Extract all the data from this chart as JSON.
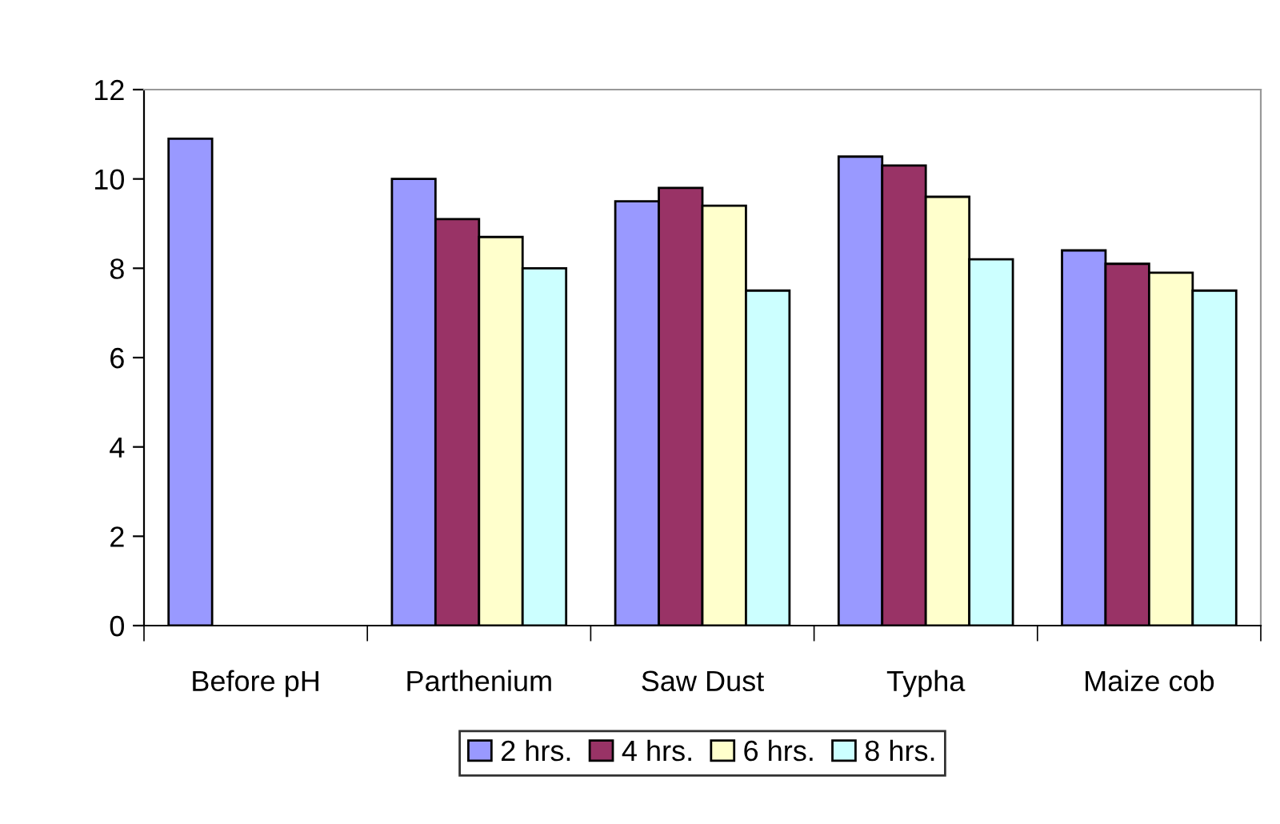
{
  "chart_data": {
    "type": "bar",
    "categories": [
      "Before pH",
      "Parthenium",
      "Saw Dust",
      "Typha",
      "Maize cob"
    ],
    "series": [
      {
        "name": "2 hrs.",
        "color": "#9999ff",
        "values": [
          10.9,
          10.0,
          9.5,
          10.5,
          8.4
        ]
      },
      {
        "name": "4 hrs.",
        "color": "#993366",
        "values": [
          null,
          9.1,
          9.8,
          10.3,
          8.1
        ]
      },
      {
        "name": "6 hrs.",
        "color": "#ffffcc",
        "values": [
          null,
          8.7,
          9.4,
          9.6,
          7.9
        ]
      },
      {
        "name": "8 hrs.",
        "color": "#ccffff",
        "values": [
          null,
          8.0,
          7.5,
          8.2,
          7.5
        ]
      }
    ],
    "ylim": [
      0,
      12
    ],
    "yticks": [
      0,
      2,
      4,
      6,
      8,
      10,
      12
    ],
    "grid": false,
    "legend": "bottom"
  }
}
